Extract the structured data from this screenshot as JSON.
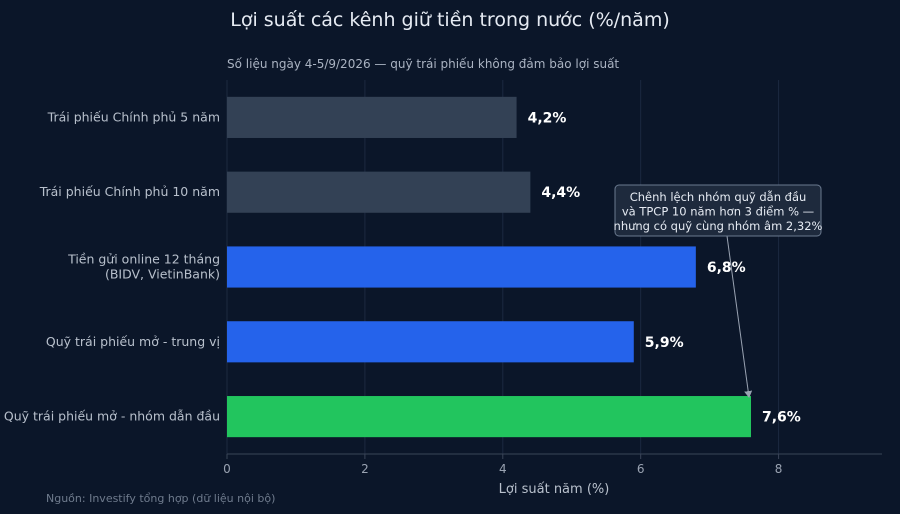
{
  "chart_data": {
    "type": "bar",
    "orientation": "horizontal",
    "title": "Lợi suất các kênh giữ tiền trong nước (%/năm)",
    "subtitle": "Số liệu ngày 4-5/9/2026 — quỹ trái phiếu không đảm bảo lợi suất",
    "categories": [
      [
        "Trái phiếu Chính phủ 5 năm"
      ],
      [
        "Trái phiếu Chính phủ 10 năm"
      ],
      [
        "Tiền gửi online 12 tháng",
        "(BIDV, VietinBank)"
      ],
      [
        "Quỹ trái phiếu mở - trung vị"
      ],
      [
        "Quỹ trái phiếu mở - nhóm dẫn đầu"
      ]
    ],
    "values": [
      4.2,
      4.4,
      6.8,
      5.9,
      7.6
    ],
    "value_labels": [
      "4,2%",
      "4,4%",
      "6,8%",
      "5,9%",
      "7,6%"
    ],
    "colors": [
      "#334155",
      "#334155",
      "#2563eb",
      "#2563eb",
      "#22c55e"
    ],
    "xlabel": "Lợi suất năm (%)",
    "xlim": [
      0,
      9.5
    ],
    "xticks": [
      0,
      2,
      4,
      6,
      8
    ],
    "grid": "vertical",
    "annotation": {
      "lines": [
        "Chênh lệch nhóm quỹ dẫn đầu",
        "và TPCP 10 năm hơn 3 điểm % —",
        "nhưng có quỹ cùng nhóm âm 2,32%"
      ],
      "points_to_category_index": 4
    },
    "source": "Nguồn: Investify tổng hợp (dữ liệu nội bộ)"
  }
}
